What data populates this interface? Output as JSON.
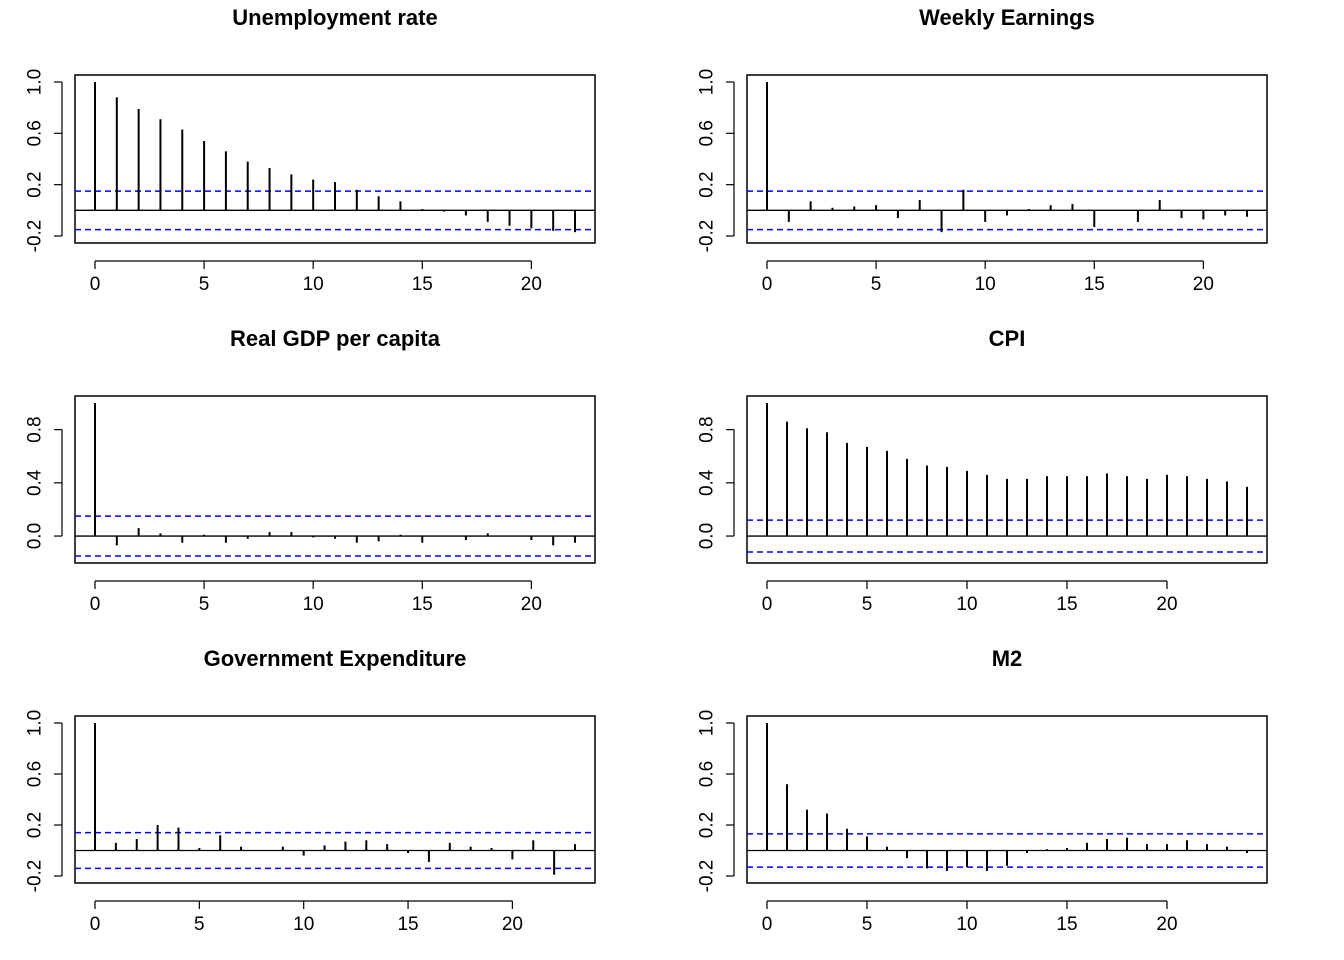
{
  "chart_data": [
    {
      "type": "bar",
      "title": "Unemployment rate",
      "x": [
        0,
        1,
        2,
        3,
        4,
        5,
        6,
        7,
        8,
        9,
        10,
        11,
        12,
        13,
        14,
        15,
        16,
        17,
        18,
        19,
        20,
        21,
        22
      ],
      "values": [
        1.0,
        0.88,
        0.79,
        0.71,
        0.63,
        0.54,
        0.46,
        0.38,
        0.33,
        0.28,
        0.24,
        0.22,
        0.16,
        0.11,
        0.07,
        0.01,
        -0.01,
        -0.04,
        -0.09,
        -0.12,
        -0.14,
        -0.16,
        -0.17
      ],
      "ci": 0.15,
      "xlim": [
        0,
        22
      ],
      "ylim": [
        -0.2,
        1.0
      ],
      "xticks": [
        "0",
        "5",
        "10",
        "15",
        "20"
      ],
      "yticks": [
        "-0.2",
        "0.2",
        "0.6",
        "1.0"
      ]
    },
    {
      "type": "bar",
      "title": "Weekly Earnings",
      "x": [
        0,
        1,
        2,
        3,
        4,
        5,
        6,
        7,
        8,
        9,
        10,
        11,
        12,
        13,
        14,
        15,
        16,
        17,
        18,
        19,
        20,
        21,
        22
      ],
      "values": [
        1.0,
        -0.09,
        0.07,
        0.02,
        0.03,
        0.04,
        -0.06,
        0.08,
        -0.17,
        0.16,
        -0.09,
        -0.04,
        0.01,
        0.04,
        0.05,
        -0.13,
        0.0,
        -0.09,
        0.08,
        -0.06,
        -0.07,
        -0.04,
        -0.05
      ],
      "ci": 0.15,
      "xlim": [
        0,
        22
      ],
      "ylim": [
        -0.2,
        1.0
      ],
      "xticks": [
        "0",
        "5",
        "10",
        "15",
        "20"
      ],
      "yticks": [
        "-0.2",
        "0.2",
        "0.6",
        "1.0"
      ]
    },
    {
      "type": "bar",
      "title": "Real GDP per capita",
      "x": [
        0,
        1,
        2,
        3,
        4,
        5,
        6,
        7,
        8,
        9,
        10,
        11,
        12,
        13,
        14,
        15,
        16,
        17,
        18,
        19,
        20,
        21,
        22
      ],
      "values": [
        1.0,
        -0.07,
        0.06,
        0.02,
        -0.05,
        0.01,
        -0.05,
        -0.02,
        0.03,
        0.03,
        -0.01,
        -0.02,
        -0.05,
        -0.04,
        0.01,
        -0.05,
        0.0,
        -0.03,
        0.02,
        0.0,
        -0.03,
        -0.07,
        -0.05
      ],
      "ci": 0.15,
      "xlim": [
        0,
        22
      ],
      "ylim": [
        -0.15,
        1.0
      ],
      "xticks": [
        "0",
        "5",
        "10",
        "15",
        "20"
      ],
      "yticks": [
        "0.0",
        "0.4",
        "0.8"
      ]
    },
    {
      "type": "bar",
      "title": "CPI",
      "x": [
        0,
        1,
        2,
        3,
        4,
        5,
        6,
        7,
        8,
        9,
        10,
        11,
        12,
        13,
        14,
        15,
        16,
        17,
        18,
        19,
        20,
        21,
        22,
        23,
        24
      ],
      "values": [
        1.0,
        0.86,
        0.81,
        0.78,
        0.7,
        0.67,
        0.64,
        0.58,
        0.53,
        0.52,
        0.49,
        0.46,
        0.43,
        0.43,
        0.45,
        0.45,
        0.45,
        0.47,
        0.45,
        0.43,
        0.46,
        0.45,
        0.43,
        0.41,
        0.37
      ],
      "ci": 0.12,
      "xlim": [
        0,
        24
      ],
      "ylim": [
        -0.15,
        1.0
      ],
      "xticks": [
        "0",
        "5",
        "10",
        "15",
        "20"
      ],
      "yticks": [
        "0.0",
        "0.4",
        "0.8"
      ]
    },
    {
      "type": "bar",
      "title": "Government Expenditure",
      "x": [
        0,
        1,
        2,
        3,
        4,
        5,
        6,
        7,
        8,
        9,
        10,
        11,
        12,
        13,
        14,
        15,
        16,
        17,
        18,
        19,
        20,
        21,
        22,
        23
      ],
      "values": [
        1.0,
        0.06,
        0.09,
        0.2,
        0.18,
        0.02,
        0.12,
        0.03,
        0.0,
        0.03,
        -0.04,
        0.04,
        0.07,
        0.08,
        0.05,
        -0.02,
        -0.09,
        0.06,
        0.03,
        0.02,
        -0.07,
        0.08,
        -0.19,
        0.05
      ],
      "ci": 0.14,
      "xlim": [
        0,
        23
      ],
      "ylim": [
        -0.2,
        1.0
      ],
      "xticks": [
        "0",
        "5",
        "10",
        "15",
        "20"
      ],
      "yticks": [
        "-0.2",
        "0.2",
        "0.6",
        "1.0"
      ]
    },
    {
      "type": "bar",
      "title": "M2",
      "x": [
        0,
        1,
        2,
        3,
        4,
        5,
        6,
        7,
        8,
        9,
        10,
        11,
        12,
        13,
        14,
        15,
        16,
        17,
        18,
        19,
        20,
        21,
        22,
        23,
        24
      ],
      "values": [
        1.0,
        0.52,
        0.32,
        0.29,
        0.17,
        0.11,
        0.03,
        -0.06,
        -0.14,
        -0.16,
        -0.13,
        -0.16,
        -0.12,
        -0.02,
        0.01,
        0.02,
        0.06,
        0.09,
        0.1,
        0.05,
        0.05,
        0.08,
        0.05,
        0.03,
        -0.02
      ],
      "ci": 0.13,
      "xlim": [
        0,
        24
      ],
      "ylim": [
        -0.2,
        1.0
      ],
      "xticks": [
        "0",
        "5",
        "10",
        "15",
        "20"
      ],
      "yticks": [
        "-0.2",
        "0.2",
        "0.6",
        "1.0"
      ]
    }
  ]
}
